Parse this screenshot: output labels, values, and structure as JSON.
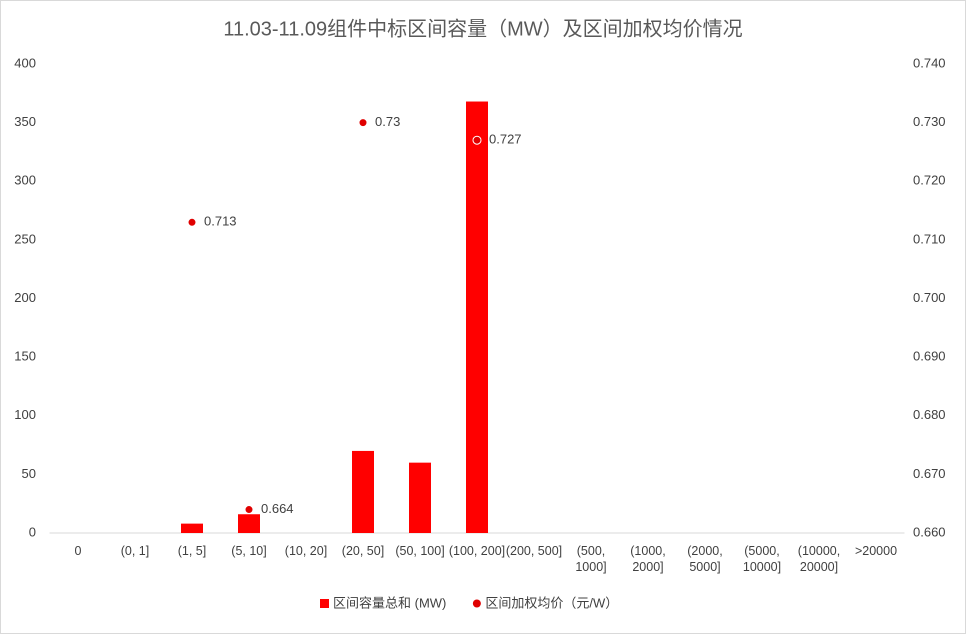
{
  "chart_data": {
    "type": "bar-scatter",
    "title": "11.03-11.09组件中标区间容量（MW）及区间加权均价情况",
    "categories": [
      "0",
      "(0, 1]",
      "(1, 5]",
      "(5, 10]",
      "(10, 20]",
      "(20, 50]",
      "(50, 100]",
      "(100, 200]",
      "(200, 500]",
      "(500, 1000]",
      "(1000, 2000]",
      "(2000, 5000]",
      "(5000, 10000]",
      "(10000, 20000]",
      ">20000"
    ],
    "series": [
      {
        "name": "区间容量总和 (MW)",
        "type": "bar",
        "color": "#ff0000",
        "values": [
          null,
          null,
          8,
          16,
          null,
          70,
          60,
          368,
          null,
          null,
          null,
          null,
          null,
          null,
          null
        ]
      },
      {
        "name": "区间加权均价（元/W）",
        "type": "scatter",
        "color": "#e00000",
        "axis": "y2",
        "values": [
          null,
          null,
          0.713,
          0.664,
          null,
          0.73,
          null,
          0.727,
          null,
          null,
          null,
          null,
          null,
          null,
          null
        ]
      }
    ],
    "ylim": [
      0,
      400
    ],
    "yticks": [
      0,
      50,
      100,
      150,
      200,
      250,
      300,
      350,
      400
    ],
    "y2lim": [
      0.66,
      0.74
    ],
    "y2ticks": [
      {
        "value": 0.66,
        "label": "0.660"
      },
      {
        "value": 0.67,
        "label": "0.670"
      },
      {
        "value": 0.68,
        "label": "0.680"
      },
      {
        "value": 0.69,
        "label": "0.690"
      },
      {
        "value": 0.7,
        "label": "0.700"
      },
      {
        "value": 0.71,
        "label": "0.710"
      },
      {
        "value": 0.72,
        "label": "0.720"
      },
      {
        "value": 0.73,
        "label": "0.730"
      },
      {
        "value": 0.74,
        "label": "0.740"
      }
    ],
    "grid": false,
    "legend": "bottom"
  }
}
